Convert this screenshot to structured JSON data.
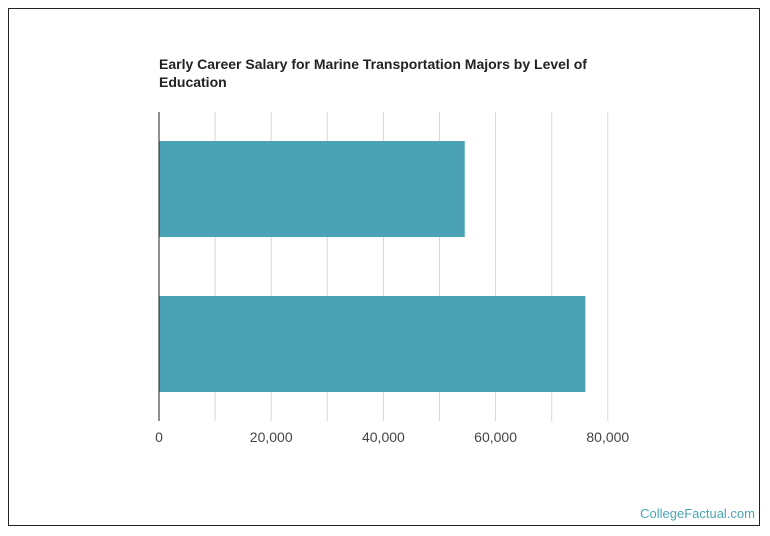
{
  "colors": {
    "bar": "#4aa2b4",
    "grid": "#d9d9d9",
    "axis": "#222222",
    "watermark": "#4ba6b6"
  },
  "watermark": "CollegeFactual.com",
  "chart_data": {
    "type": "bar",
    "orientation": "horizontal",
    "title": "Early Career Salary for Marine Transportation Majors by Level of Education",
    "xlabel": "",
    "ylabel": "",
    "categories": [
      "",
      ""
    ],
    "values": [
      54500,
      76000
    ],
    "xlim": [
      0,
      80000
    ],
    "xticks": [
      0,
      20000,
      40000,
      60000,
      80000
    ],
    "xtick_labels": [
      "0",
      "20,000",
      "40,000",
      "60,000",
      "80,000"
    ],
    "grid": true,
    "legend": "none"
  }
}
